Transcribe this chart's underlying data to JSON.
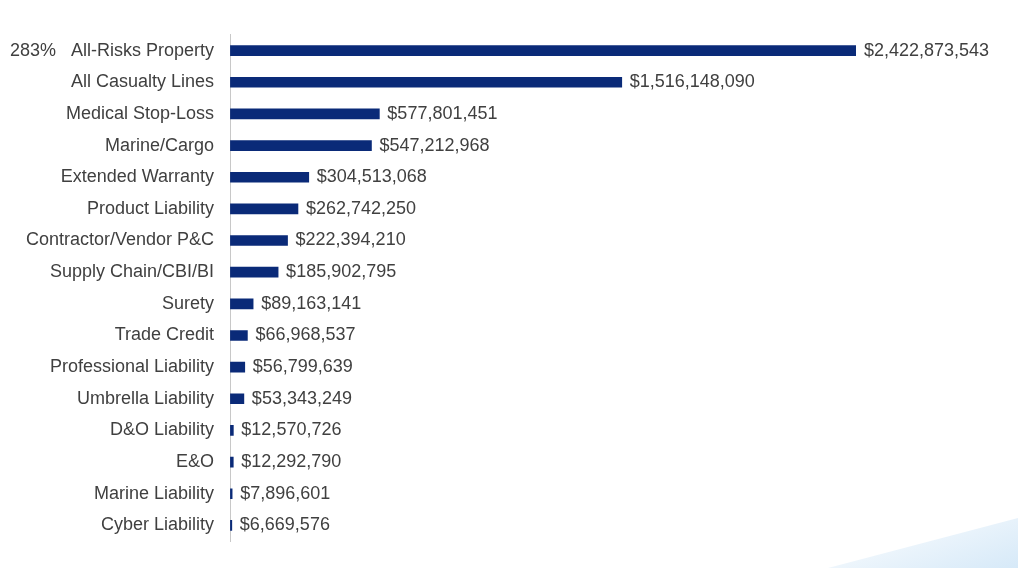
{
  "chart_data": {
    "type": "bar",
    "orientation": "horizontal",
    "categories": [
      "All-Risks Property",
      "All Casualty Lines",
      "Medical Stop-Loss",
      "Marine/Cargo",
      "Extended Warranty",
      "Product Liability",
      "Contractor/Vendor P&C",
      "Supply Chain/CBI/BI",
      "Surety",
      "Trade Credit",
      "Professional Liability",
      "Umbrella Liability",
      "D&O Liability",
      "E&O",
      "Marine Liability",
      "Cyber Liability"
    ],
    "values": [
      2422873543,
      1516148090,
      577801451,
      547212968,
      304513068,
      262742250,
      222394210,
      185902795,
      89163141,
      66968537,
      56799639,
      53343249,
      12570726,
      12292790,
      7896601,
      6669576
    ],
    "value_labels": [
      "$2,422,873,543",
      "$1,516,148,090",
      "$577,801,451",
      "$547,212,968",
      "$304,513,068",
      "$262,742,250",
      "$222,394,210",
      "$185,902,795",
      "$89,163,141",
      "$66,968,537",
      "$56,799,639",
      "$53,343,249",
      "$12,570,726",
      "$12,292,790",
      "$7,896,601",
      "$6,669,576"
    ],
    "color": "#0a2a78",
    "annotations": [
      "283%"
    ],
    "grid": false,
    "legend": false
  }
}
